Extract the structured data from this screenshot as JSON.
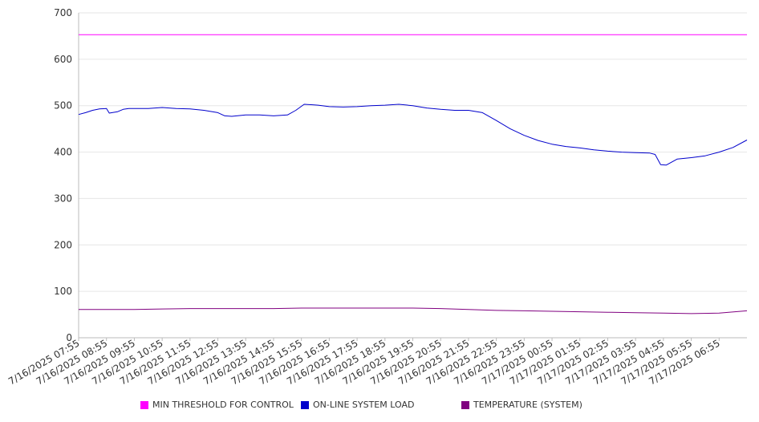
{
  "chart_data": {
    "type": "line",
    "title": "",
    "xlabel": "",
    "ylabel": "",
    "ylim": [
      0,
      700
    ],
    "yticks": [
      0,
      100,
      200,
      300,
      400,
      500,
      600,
      700
    ],
    "grid": true,
    "legend_position": "bottom",
    "x_tick_labels": [
      "7/16/2025 07:55",
      "7/16/2025 08:55",
      "7/16/2025 09:55",
      "7/16/2025 10:55",
      "7/16/2025 11:55",
      "7/16/2025 12:55",
      "7/16/2025 13:55",
      "7/16/2025 14:55",
      "7/16/2025 15:55",
      "7/16/2025 16:55",
      "7/16/2025 17:55",
      "7/16/2025 18:55",
      "7/16/2025 19:55",
      "7/16/2025 20:55",
      "7/16/2025 21:55",
      "7/16/2025 22:55",
      "7/16/2025 23:55",
      "7/17/2025 00:55",
      "7/17/2025 01:55",
      "7/17/2025 02:55",
      "7/17/2025 03:55",
      "7/17/2025 04:55",
      "7/17/2025 05:55",
      "7/17/2025 06:55"
    ],
    "x_range_hours": [
      0,
      24
    ],
    "series": [
      {
        "name": "MIN THRESHOLD FOR CONTROL",
        "color": "#ff00ff",
        "hours": [
          0,
          24
        ],
        "values": [
          653,
          653
        ]
      },
      {
        "name": "ON-LINE SYSTEM LOAD",
        "color": "#0000cc",
        "hours": [
          0,
          0.25,
          0.5,
          0.75,
          1,
          1.1,
          1.2,
          1.4,
          1.6,
          1.8,
          2,
          2.5,
          3,
          3.5,
          4,
          4.5,
          5,
          5.25,
          5.5,
          6,
          6.5,
          7,
          7.5,
          7.8,
          8.1,
          8.4,
          8.6,
          9,
          9.5,
          10,
          10.5,
          11,
          11.5,
          12,
          12.5,
          13,
          13.5,
          14,
          14.5,
          15,
          15.5,
          16,
          16.5,
          17,
          17.5,
          18,
          18.5,
          19,
          19.5,
          20,
          20.5,
          20.7,
          20.9,
          21.1,
          21.5,
          22,
          22.5,
          23,
          23.5,
          24
        ],
        "values": [
          481,
          485,
          490,
          493,
          494,
          484,
          485,
          487,
          492,
          494,
          494,
          494,
          496,
          494,
          493,
          490,
          485,
          478,
          477,
          480,
          480,
          478,
          480,
          490,
          503,
          502,
          501,
          498,
          497,
          498,
          500,
          501,
          503,
          500,
          495,
          492,
          490,
          490,
          485,
          468,
          450,
          436,
          425,
          417,
          412,
          409,
          405,
          402,
          400,
          399,
          398,
          395,
          373,
          372,
          385,
          388,
          392,
          400,
          410,
          426
        ]
      },
      {
        "name": "TEMPERATURE (SYSTEM)",
        "color": "#800080",
        "hours": [
          0,
          2,
          3,
          4,
          5,
          6,
          7,
          8,
          9,
          10,
          11,
          12,
          13,
          14,
          15,
          16,
          17,
          18,
          19,
          20,
          21,
          22,
          23,
          24
        ],
        "values": [
          61,
          61,
          62,
          63,
          63,
          63,
          63,
          64,
          64,
          64,
          64,
          64,
          63,
          61,
          59,
          58,
          57,
          56,
          55,
          54,
          53,
          52,
          53,
          58
        ]
      }
    ]
  }
}
